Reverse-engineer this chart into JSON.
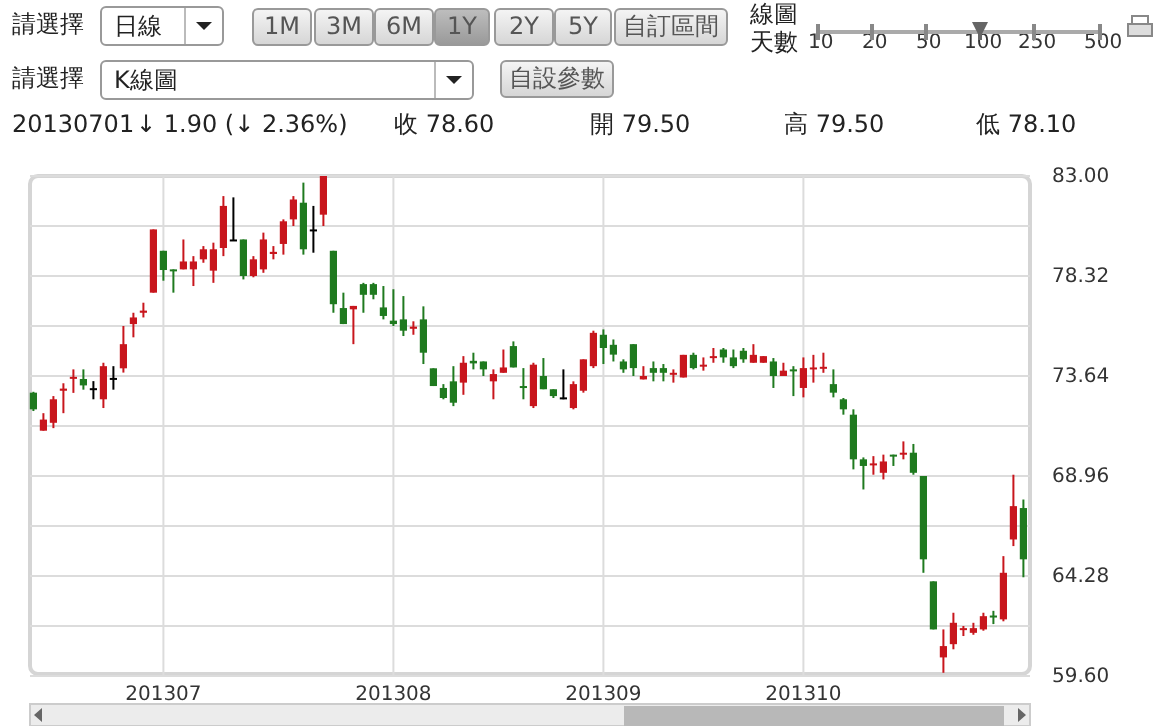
{
  "chart_data": {
    "type": "candlestick",
    "categories": [
      null,
      null,
      null,
      null,
      null,
      null,
      null,
      null,
      null,
      null,
      null,
      null,
      null,
      "201307",
      null,
      null,
      null,
      null,
      null,
      null,
      null,
      null,
      null,
      null,
      null,
      null,
      null,
      null,
      null,
      null,
      null,
      null,
      null,
      null,
      null,
      null,
      "201308",
      null,
      null,
      null,
      null,
      null,
      null,
      null,
      null,
      null,
      null,
      null,
      null,
      null,
      null,
      null,
      null,
      null,
      null,
      null,
      null,
      "201309",
      null,
      null,
      null,
      null,
      null,
      null,
      null,
      null,
      null,
      null,
      null,
      null,
      null,
      null,
      null,
      null,
      null,
      null,
      null,
      "201310",
      null,
      null,
      null,
      null,
      null,
      null,
      null,
      null,
      null,
      null,
      null,
      null,
      null,
      null,
      null,
      null,
      null,
      null,
      null,
      null,
      null,
      null
    ],
    "ohlc": [
      [
        72.86,
        72.9,
        72.0,
        72.08
      ],
      [
        71.08,
        71.9,
        71.08,
        71.6
      ],
      [
        71.45,
        72.7,
        71.2,
        72.55
      ],
      [
        72.95,
        73.3,
        71.9,
        73.05
      ],
      [
        73.55,
        73.95,
        72.85,
        73.6
      ],
      [
        73.5,
        73.95,
        73.0,
        73.2
      ],
      [
        73.07,
        73.4,
        72.55,
        73.07
      ],
      [
        72.55,
        74.26,
        72.14,
        74.1
      ],
      [
        73.55,
        74.1,
        73.0,
        73.55
      ],
      [
        74.0,
        75.98,
        73.8,
        75.13
      ],
      [
        76.07,
        76.6,
        75.45,
        76.38
      ],
      [
        76.6,
        77.07,
        76.38,
        76.7
      ],
      [
        77.54,
        80.5,
        77.54,
        80.5
      ],
      [
        79.5,
        79.5,
        78.1,
        78.6
      ],
      [
        78.63,
        78.63,
        77.54,
        78.6
      ],
      [
        78.63,
        80.03,
        78.63,
        79.0
      ],
      [
        78.63,
        79.25,
        77.85,
        79.0
      ],
      [
        79.1,
        79.72,
        78.94,
        79.57
      ],
      [
        78.57,
        79.88,
        78.0,
        79.57
      ],
      [
        79.63,
        82.06,
        79.25,
        81.6
      ],
      [
        80.03,
        82.0,
        80.0,
        80.03
      ],
      [
        80.03,
        80.03,
        78.16,
        78.32
      ],
      [
        78.32,
        79.25,
        78.26,
        79.1
      ],
      [
        78.63,
        80.35,
        78.47,
        80.03
      ],
      [
        79.35,
        79.72,
        79.1,
        79.45
      ],
      [
        79.82,
        80.97,
        79.32,
        80.88
      ],
      [
        80.97,
        82.06,
        80.66,
        81.9
      ],
      [
        81.75,
        82.69,
        79.32,
        79.57
      ],
      [
        80.5,
        81.6,
        79.41,
        80.5
      ],
      [
        81.19,
        83.0,
        80.66,
        83.0
      ],
      [
        79.5,
        79.5,
        76.6,
        77.0
      ],
      [
        76.82,
        77.54,
        76.07,
        76.07
      ],
      [
        76.76,
        76.92,
        75.13,
        76.92
      ],
      [
        77.94,
        78.0,
        76.6,
        77.44
      ],
      [
        77.94,
        78.0,
        77.23,
        77.44
      ],
      [
        76.85,
        77.85,
        76.29,
        76.45
      ],
      [
        76.23,
        77.7,
        75.98,
        76.07
      ],
      [
        76.29,
        77.38,
        75.51,
        75.76
      ],
      [
        75.85,
        76.2,
        75.57,
        75.95
      ],
      [
        76.29,
        76.9,
        74.2,
        74.73
      ],
      [
        74.0,
        74.0,
        73.17,
        73.17
      ],
      [
        73.08,
        73.26,
        72.55,
        72.61
      ],
      [
        73.39,
        74.1,
        72.23,
        72.39
      ],
      [
        73.33,
        74.57,
        72.76,
        74.26
      ],
      [
        74.35,
        74.73,
        73.95,
        74.23
      ],
      [
        74.32,
        74.32,
        73.64,
        73.95
      ],
      [
        73.39,
        73.95,
        72.55,
        73.73
      ],
      [
        73.79,
        74.88,
        73.79,
        74.04
      ],
      [
        75.04,
        75.26,
        74.04,
        74.04
      ],
      [
        73.17,
        74.01,
        72.55,
        73.14
      ],
      [
        72.23,
        74.26,
        72.14,
        74.17
      ],
      [
        73.64,
        74.48,
        73.02,
        73.02
      ],
      [
        73.02,
        73.02,
        72.61,
        72.7
      ],
      [
        72.64,
        73.95,
        72.55,
        72.64
      ],
      [
        72.14,
        73.39,
        72.08,
        73.26
      ],
      [
        72.95,
        74.42,
        72.86,
        74.42
      ],
      [
        74.1,
        75.76,
        74.01,
        75.66
      ],
      [
        75.57,
        75.82,
        74.2,
        74.95
      ],
      [
        75.1,
        75.35,
        74.32,
        74.64
      ],
      [
        74.32,
        74.42,
        73.79,
        73.95
      ],
      [
        75.13,
        75.13,
        73.64,
        74.01
      ],
      [
        73.48,
        74.1,
        73.48,
        73.64
      ],
      [
        74.01,
        74.32,
        73.39,
        73.79
      ],
      [
        74.01,
        74.2,
        73.39,
        73.79
      ],
      [
        73.75,
        73.95,
        73.33,
        73.79
      ],
      [
        73.57,
        74.63,
        73.57,
        74.63
      ],
      [
        74.63,
        74.73,
        73.95,
        74.01
      ],
      [
        74.12,
        74.51,
        73.89,
        74.17
      ],
      [
        74.54,
        74.95,
        74.26,
        74.57
      ],
      [
        74.88,
        74.95,
        74.26,
        74.51
      ],
      [
        74.51,
        74.88,
        74.01,
        74.1
      ],
      [
        74.82,
        74.95,
        74.26,
        74.42
      ],
      [
        74.26,
        75.13,
        74.26,
        74.63
      ],
      [
        74.26,
        74.57,
        74.26,
        74.57
      ],
      [
        74.32,
        74.48,
        73.08,
        73.64
      ],
      [
        73.64,
        74.26,
        73.64,
        73.89
      ],
      [
        73.95,
        74.1,
        72.7,
        73.9
      ],
      [
        73.08,
        74.51,
        72.64,
        74.01
      ],
      [
        74.0,
        74.63,
        73.33,
        74.04
      ],
      [
        74.04,
        74.73,
        73.79,
        74.07
      ],
      [
        73.26,
        73.95,
        72.64,
        72.86
      ],
      [
        72.55,
        72.61,
        71.83,
        72.08
      ],
      [
        71.83,
        72.08,
        69.27,
        69.74
      ],
      [
        69.74,
        69.83,
        68.33,
        69.43
      ],
      [
        69.5,
        69.89,
        69.02,
        69.55
      ],
      [
        69.11,
        69.96,
        68.8,
        69.64
      ],
      [
        69.96,
        69.96,
        69.43,
        69.92
      ],
      [
        70.0,
        70.58,
        69.74,
        70.05
      ],
      [
        70.05,
        70.46,
        69.02,
        69.11
      ],
      [
        68.96,
        68.96,
        64.43,
        65.06
      ],
      [
        64.03,
        64.03,
        61.78,
        61.78
      ],
      [
        60.47,
        61.78,
        59.75,
        61.0
      ],
      [
        61.09,
        62.56,
        60.85,
        62.09
      ],
      [
        61.78,
        61.94,
        61.47,
        61.84
      ],
      [
        61.62,
        62.09,
        61.53,
        61.84
      ],
      [
        61.78,
        62.56,
        61.72,
        62.4
      ],
      [
        62.43,
        62.65,
        62.03,
        62.4
      ],
      [
        62.25,
        65.21,
        62.16,
        64.43
      ],
      [
        65.99,
        69.02,
        65.68,
        67.55
      ],
      [
        67.46,
        67.86,
        64.22,
        65.06
      ]
    ],
    "colors": [
      "#1f7a1f",
      "#c8161d",
      "#c8161d",
      "#c8161d",
      "#c8161d",
      "#1f7a1f",
      "#000000",
      "#c8161d",
      "#000000",
      "#c8161d",
      "#c8161d",
      "#c8161d",
      "#c8161d",
      "#1f7a1f",
      "#1f7a1f",
      "#c8161d",
      "#c8161d",
      "#c8161d",
      "#c8161d",
      "#c8161d",
      "#000000",
      "#1f7a1f",
      "#c8161d",
      "#c8161d",
      "#c8161d",
      "#c8161d",
      "#c8161d",
      "#1f7a1f",
      "#000000",
      "#c8161d",
      "#1f7a1f",
      "#1f7a1f",
      "#c8161d",
      "#1f7a1f",
      "#1f7a1f",
      "#1f7a1f",
      "#1f7a1f",
      "#1f7a1f",
      "#c8161d",
      "#1f7a1f",
      "#1f7a1f",
      "#1f7a1f",
      "#1f7a1f",
      "#c8161d",
      "#1f7a1f",
      "#1f7a1f",
      "#c8161d",
      "#c8161d",
      "#1f7a1f",
      "#1f7a1f",
      "#c8161d",
      "#1f7a1f",
      "#1f7a1f",
      "#000000",
      "#c8161d",
      "#c8161d",
      "#c8161d",
      "#1f7a1f",
      "#1f7a1f",
      "#1f7a1f",
      "#1f7a1f",
      "#c8161d",
      "#1f7a1f",
      "#1f7a1f",
      "#c8161d",
      "#c8161d",
      "#1f7a1f",
      "#c8161d",
      "#c8161d",
      "#1f7a1f",
      "#1f7a1f",
      "#1f7a1f",
      "#c8161d",
      "#c8161d",
      "#1f7a1f",
      "#c8161d",
      "#1f7a1f",
      "#c8161d",
      "#c8161d",
      "#c8161d",
      "#1f7a1f",
      "#1f7a1f",
      "#1f7a1f",
      "#1f7a1f",
      "#c8161d",
      "#c8161d",
      "#1f7a1f",
      "#c8161d",
      "#1f7a1f",
      "#1f7a1f",
      "#1f7a1f",
      "#c8161d",
      "#c8161d",
      "#c8161d",
      "#c8161d",
      "#c8161d",
      "#1f7a1f",
      "#c8161d",
      "#c8161d",
      "#1f7a1f"
    ],
    "ylim": [
      59.6,
      83.0
    ],
    "yticks": [
      {
        "value": 59.6,
        "label": "59.60"
      },
      {
        "value": 61.94,
        "label": null
      },
      {
        "value": 64.28,
        "label": "64.28"
      },
      {
        "value": 66.62,
        "label": null
      },
      {
        "value": 68.96,
        "label": "68.96"
      },
      {
        "value": 71.3,
        "label": null
      },
      {
        "value": 73.64,
        "label": "73.64"
      },
      {
        "value": 75.98,
        "label": null
      },
      {
        "value": 78.32,
        "label": "78.32"
      },
      {
        "value": 80.66,
        "label": null
      },
      {
        "value": 83.0,
        "label": "83.00"
      }
    ],
    "grid": true,
    "annotations": [
      "請選擇",
      "日線",
      "1M",
      "3M",
      "6M",
      "1Y",
      "2Y",
      "5Y",
      "自訂區間",
      "線圖",
      "天數",
      "10",
      "20",
      "50",
      "100",
      "250",
      "500",
      "請選擇",
      "K線圖",
      "自設參數",
      "20130701",
      "↓ 1.90 (↓ 2.36%)",
      "收 78.60",
      "開 79.50",
      "高 79.50",
      "低 78.10"
    ]
  }
}
